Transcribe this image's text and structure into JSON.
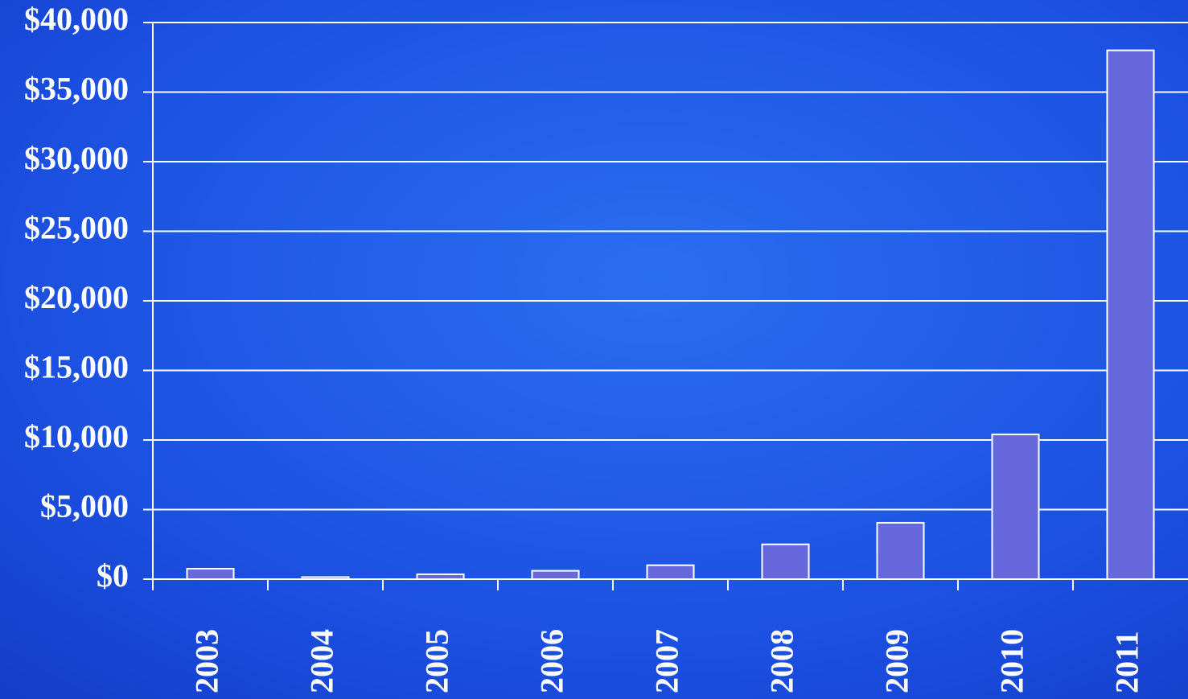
{
  "chart_data": {
    "type": "bar",
    "categories": [
      "2003",
      "2004",
      "2005",
      "2006",
      "2007",
      "2008",
      "2009",
      "2010",
      "2011"
    ],
    "values": [
      750,
      150,
      350,
      600,
      1000,
      2500,
      4050,
      10400,
      38000
    ],
    "color": "#6666dd",
    "ylim": [
      0,
      40000
    ],
    "yticks": [
      {
        "value": 0,
        "label": "$0"
      },
      {
        "value": 5000,
        "label": "$5,000"
      },
      {
        "value": 10000,
        "label": "$10,000"
      },
      {
        "value": 15000,
        "label": "$15,000"
      },
      {
        "value": 20000,
        "label": "$20,000"
      },
      {
        "value": 25000,
        "label": "$25,000"
      },
      {
        "value": 30000,
        "label": "$30,000"
      },
      {
        "value": 35000,
        "label": "$35,000"
      },
      {
        "value": 40000,
        "label": "$40,000"
      }
    ],
    "grid": true
  }
}
